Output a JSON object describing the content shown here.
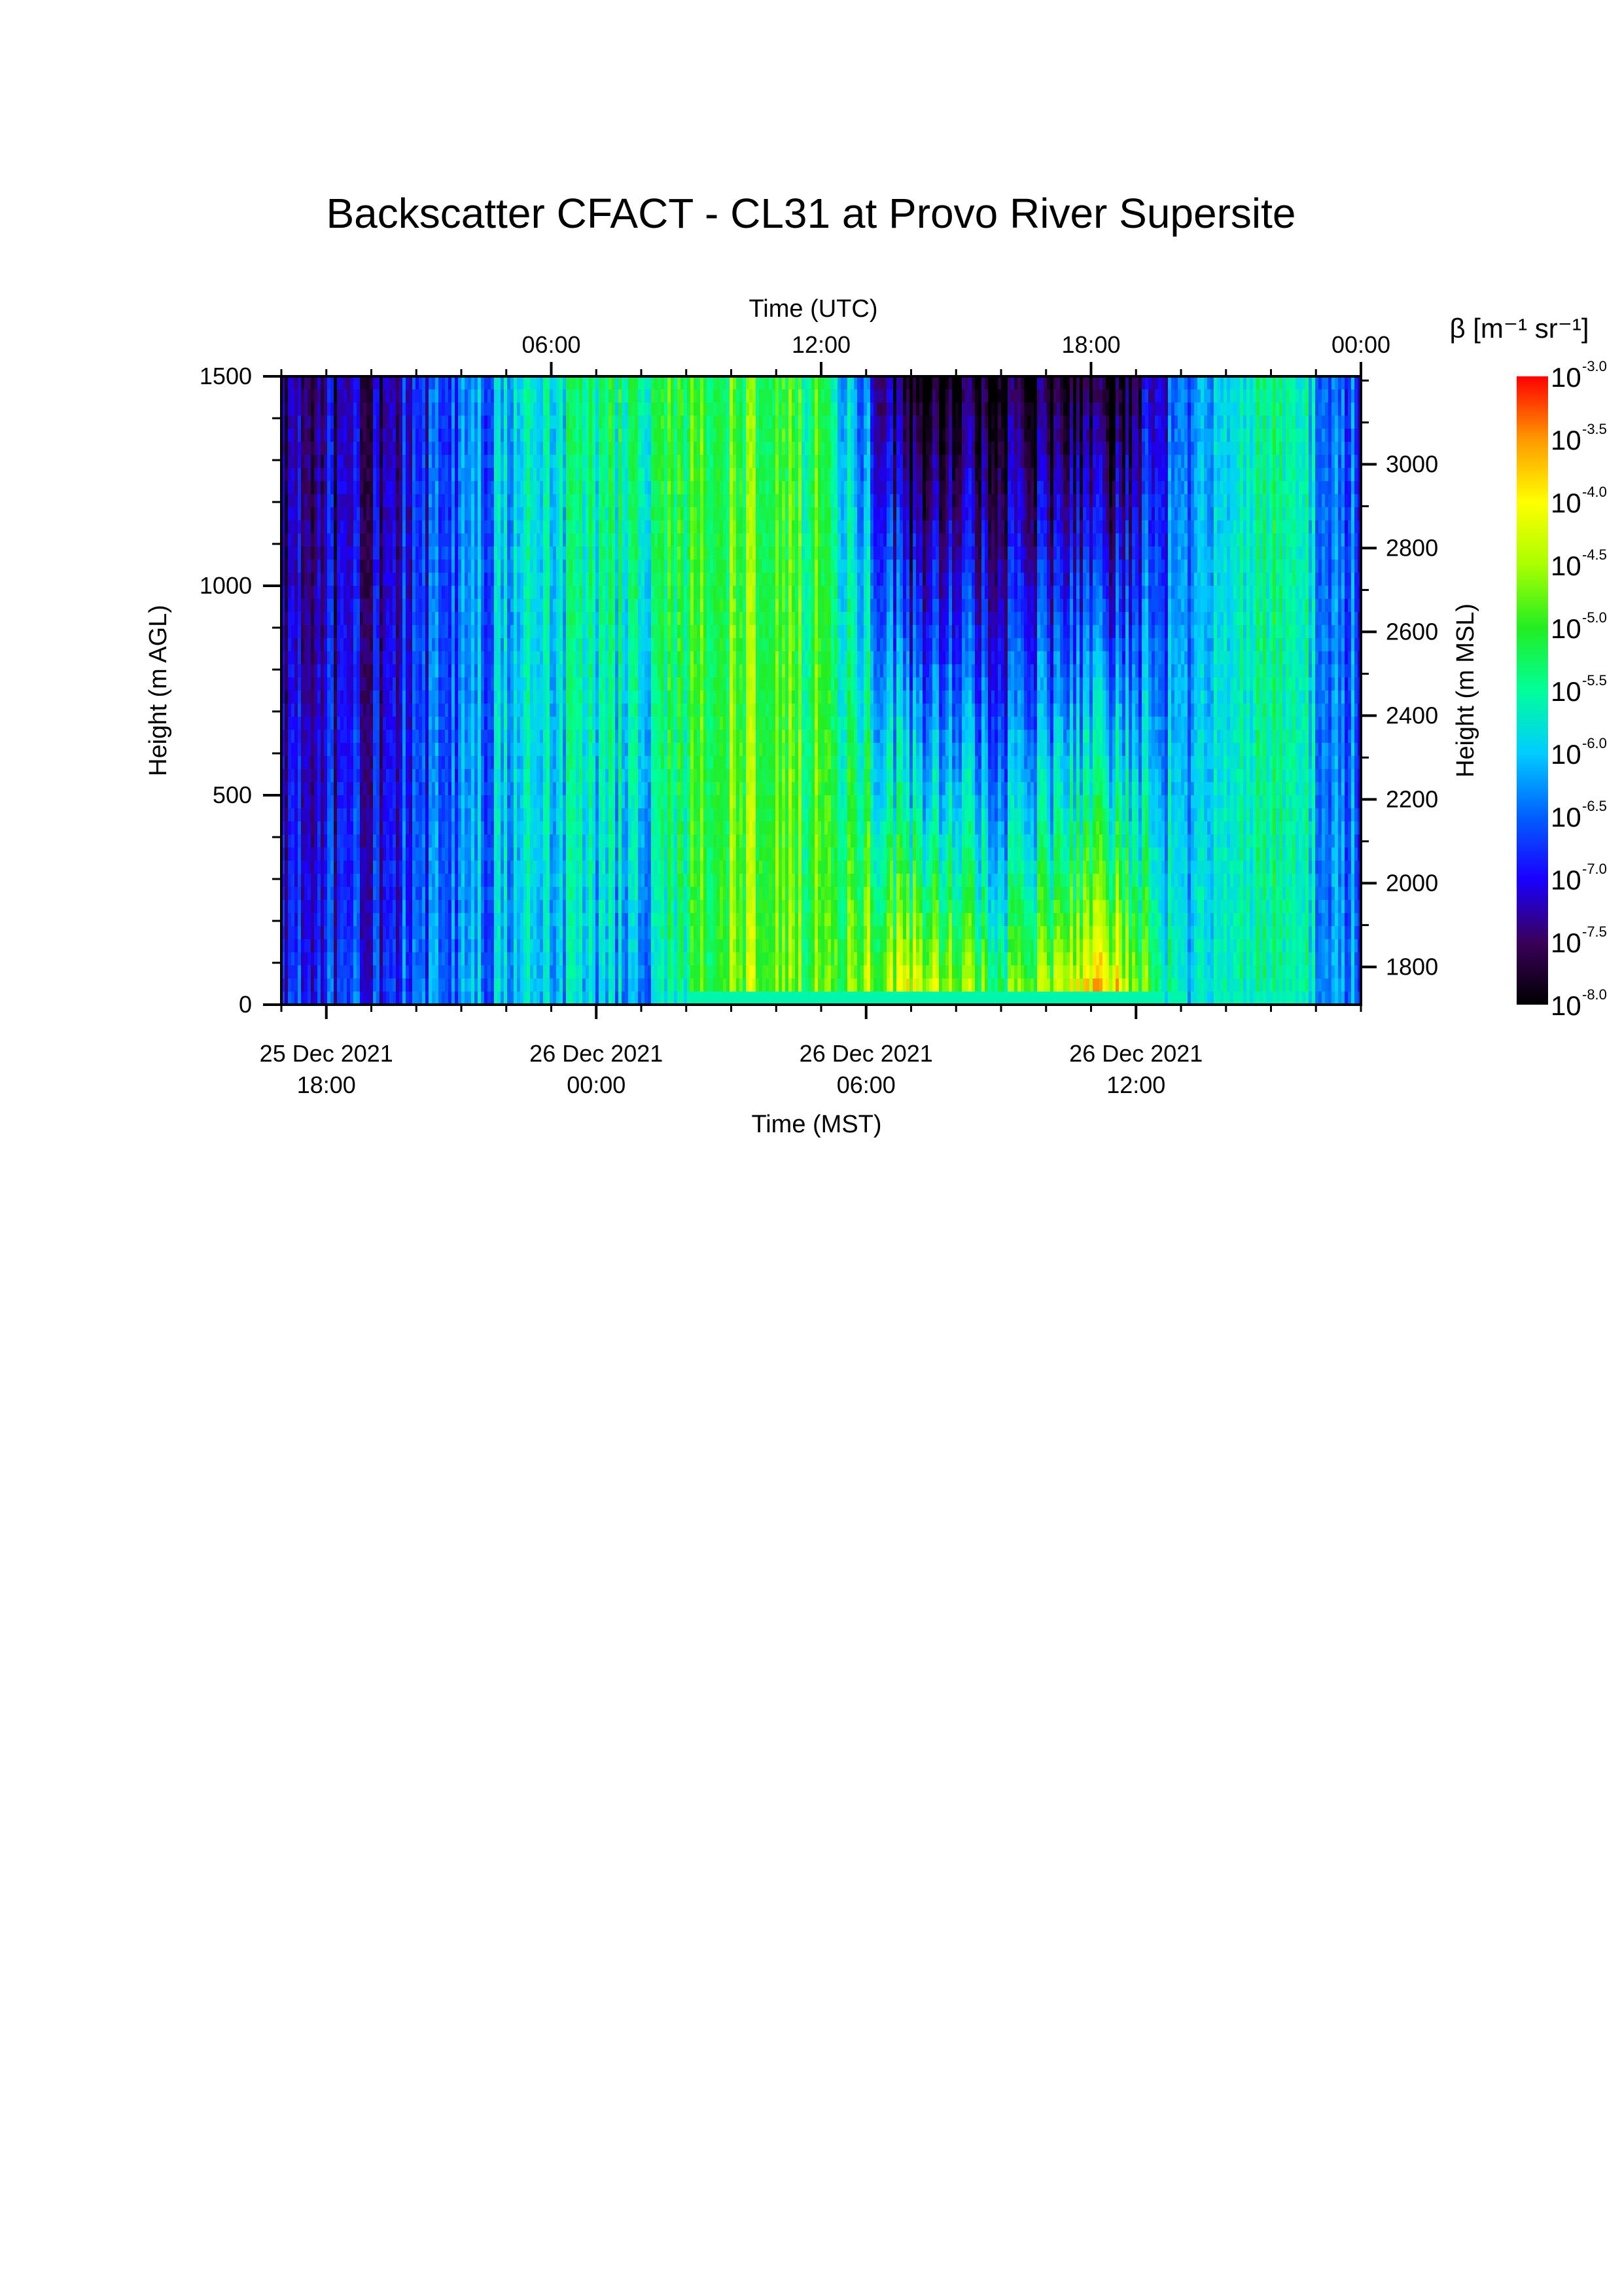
{
  "chart_data": {
    "type": "heatmap",
    "title": "Backscatter CFACT - CL31 at Provo River Supersite",
    "x_bottom": {
      "label": "Time (MST)",
      "range": [
        "2021-12-25 17:00",
        "2021-12-26 17:00"
      ],
      "ticks": [
        {
          "date": "25 Dec 2021",
          "time": "18:00"
        },
        {
          "date": "26 Dec 2021",
          "time": "00:00"
        },
        {
          "date": "26 Dec 2021",
          "time": "06:00"
        },
        {
          "date": "26 Dec 2021",
          "time": "12:00"
        }
      ]
    },
    "x_top": {
      "label": "Time (UTC)",
      "range": [
        "2021-12-26 00:00",
        "2021-12-27 00:00"
      ],
      "ticks": [
        "06:00",
        "12:00",
        "18:00",
        "00:00"
      ]
    },
    "y_left": {
      "label": "Height (m AGL)",
      "range": [
        0,
        1500
      ],
      "ticks": [
        "0",
        "500",
        "1000",
        "1500"
      ]
    },
    "y_right": {
      "label": "Height (m MSL)",
      "range": [
        1710,
        3210
      ],
      "ticks": [
        "1800",
        "2000",
        "2200",
        "2400",
        "2600",
        "2800",
        "3000"
      ]
    },
    "colorbar": {
      "label": "β [m⁻¹ sr⁻¹]",
      "base": "10",
      "exponents": [
        "-3.0",
        "-3.5",
        "-4.0",
        "-4.5",
        "-5.0",
        "-5.5",
        "-6.0",
        "-6.5",
        "-7.0",
        "-7.5",
        "-8.0"
      ],
      "range_log10": [
        -8.0,
        -3.0
      ],
      "colormap": [
        "#000000",
        "#3a005a",
        "#1a00ff",
        "#0060ff",
        "#00ccff",
        "#00ff99",
        "#22ee22",
        "#aaff00",
        "#ffff00",
        "#ff9900",
        "#ff0000"
      ]
    },
    "description_of_field": "log10 attenuated backscatter vs time (columns) and height (rows)",
    "time_profiles_log10_beta": [
      {
        "hour_mst": 17.0,
        "near_surface": -6.8,
        "aloft": -7.4
      },
      {
        "hour_mst": 19.0,
        "near_surface": -6.7,
        "aloft": -7.3
      },
      {
        "hour_mst": 21.0,
        "near_surface": -6.4,
        "aloft": -6.6
      },
      {
        "hour_mst": 23.0,
        "near_surface": -5.9,
        "aloft": -5.6
      },
      {
        "hour_mst": 1.0,
        "near_surface": -6.3,
        "aloft": -5.3
      },
      {
        "hour_mst": 3.0,
        "near_surface": -4.6,
        "aloft": -5.0
      },
      {
        "hour_mst": 5.0,
        "near_surface": -4.9,
        "aloft": -5.2
      },
      {
        "hour_mst": 7.0,
        "near_surface": -3.8,
        "aloft": -8.0
      },
      {
        "hour_mst": 9.0,
        "near_surface": -4.8,
        "aloft": -7.8
      },
      {
        "hour_mst": 11.5,
        "near_surface": -3.5,
        "aloft": -8.0
      },
      {
        "hour_mst": 13.0,
        "near_surface": -5.8,
        "aloft": -6.5
      },
      {
        "hour_mst": 15.0,
        "near_surface": -5.3,
        "aloft": -5.2
      },
      {
        "hour_mst": 17.0,
        "near_surface": -6.4,
        "aloft": -6.8
      }
    ]
  }
}
